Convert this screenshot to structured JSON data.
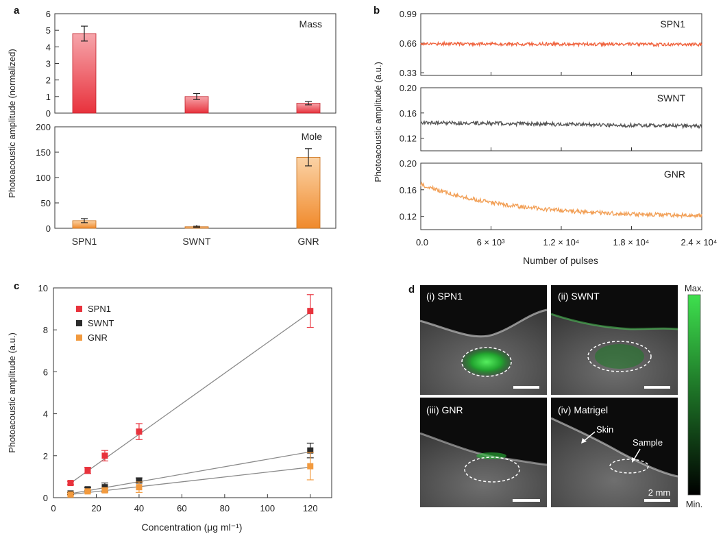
{
  "colors": {
    "spn1": "#e8323c",
    "spn1_light": "#f4a3a8",
    "gnr": "#f29a3e",
    "gnr_light": "#fbd3a6",
    "swnt": "#2b2b2b",
    "spn1_trace": "#f0643f",
    "swnt_trace": "#555555",
    "gnr_trace": "#f2a057",
    "fit_line": "#8a8a8a",
    "image_green": "#27c53b",
    "image_bg": "#0c0c0c"
  },
  "panel_labels": {
    "a": "a",
    "b": "b",
    "c": "c",
    "d": "d"
  },
  "chart_data": [
    {
      "panel": "a",
      "type": "bar",
      "ylabel": "Photoacoustic amplitude (normalized)",
      "categories": [
        "SPN1",
        "SWNT",
        "GNR"
      ],
      "subplots": [
        {
          "label": "Mass",
          "values": [
            4.8,
            1.0,
            0.6
          ],
          "errors": [
            0.45,
            0.18,
            0.1
          ],
          "ylim": [
            0,
            6
          ],
          "yticks": [
            "0",
            "1",
            "2",
            "3",
            "4",
            "5",
            "6"
          ],
          "color": "spn1"
        },
        {
          "label": "Mole",
          "values": [
            15,
            3,
            140
          ],
          "errors": [
            4,
            1,
            17
          ],
          "ylim": [
            0,
            200
          ],
          "yticks": [
            "0",
            "50",
            "100",
            "150",
            "200"
          ],
          "color": "gnr"
        }
      ]
    },
    {
      "panel": "b",
      "type": "line",
      "ylabel": "Photoacoustic amplitude (a.u.)",
      "xlabel": "Number of pulses",
      "xlim": [
        0,
        24000
      ],
      "xticks": [
        "0.0",
        "6 × 10³",
        "1.2 × 10⁴",
        "1.8 × 10⁴",
        "2.4 × 10⁴"
      ],
      "series": [
        {
          "name": "SPN1",
          "ylim": [
            0.3,
            0.99
          ],
          "yticks": [
            "0.33",
            "0.66",
            "0.99"
          ],
          "start": 0.655,
          "end": 0.645,
          "noise": 0.018,
          "color": "spn1_trace"
        },
        {
          "name": "SWNT",
          "ylim": [
            0.1,
            0.2
          ],
          "yticks": [
            "0.12",
            "0.16",
            "0.20"
          ],
          "start": 0.145,
          "end": 0.139,
          "noise": 0.003,
          "color": "swnt_trace"
        },
        {
          "name": "GNR",
          "ylim": [
            0.1,
            0.2
          ],
          "yticks": [
            "0.12",
            "0.16",
            "0.20"
          ],
          "start": 0.168,
          "end": 0.119,
          "noise": 0.003,
          "color": "gnr_trace"
        }
      ]
    },
    {
      "panel": "c",
      "type": "scatter",
      "xlabel": "Concentration (μg ml⁻¹)",
      "ylabel": "Photoacoustic amplitude (a.u.)",
      "xlim": [
        0,
        130
      ],
      "ylim": [
        0,
        10
      ],
      "xticks": [
        "0",
        "20",
        "40",
        "60",
        "80",
        "100",
        "120"
      ],
      "yticks": [
        "0",
        "2",
        "4",
        "6",
        "8",
        "10"
      ],
      "x": [
        8,
        16,
        24,
        40,
        120
      ],
      "series": [
        {
          "name": "SPN1",
          "values": [
            0.7,
            1.3,
            2.0,
            3.15,
            8.9
          ],
          "errors": [
            0.08,
            0.15,
            0.25,
            0.38,
            0.78
          ],
          "color": "spn1"
        },
        {
          "name": "SWNT",
          "values": [
            0.2,
            0.4,
            0.5,
            0.82,
            2.25
          ],
          "errors": [
            0.05,
            0.08,
            0.2,
            0.12,
            0.35
          ],
          "color": "swnt"
        },
        {
          "name": "GNR",
          "values": [
            0.15,
            0.3,
            0.35,
            0.5,
            1.5
          ],
          "errors": [
            0.05,
            0.06,
            0.1,
            0.25,
            0.65
          ],
          "color": "gnr"
        }
      ],
      "fits": [
        {
          "series": "SPN1",
          "slope": 0.0728,
          "intercept": 0.11
        },
        {
          "series": "SWNT",
          "slope": 0.0178,
          "intercept": 0.05
        },
        {
          "series": "GNR",
          "slope": 0.0116,
          "intercept": 0.06
        }
      ]
    }
  ],
  "panel_d": {
    "tiles": [
      {
        "label": "(i) SPN1",
        "signal": "strong"
      },
      {
        "label": "(ii) SWNT",
        "signal": "medium"
      },
      {
        "label": "(iii) GNR",
        "signal": "weak"
      },
      {
        "label": "(iv) Matrigel",
        "signal": "none"
      }
    ],
    "annotations": {
      "skin": "Skin",
      "sample": "Sample",
      "scale_bar": "2 mm"
    },
    "colorbar": {
      "max": "Max.",
      "min": "Min."
    }
  }
}
